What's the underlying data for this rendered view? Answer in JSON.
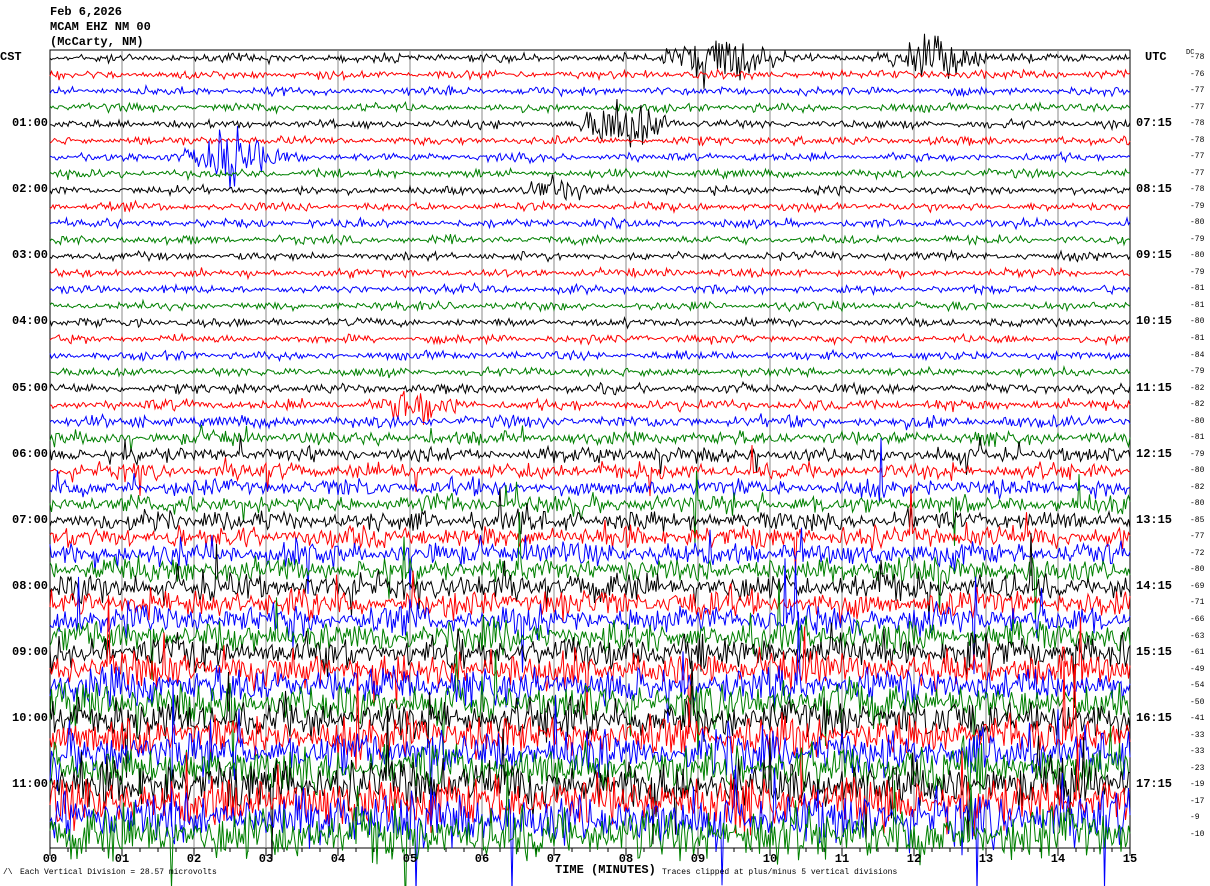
{
  "header": {
    "date": "Feb 6,2026",
    "station": "MCAM EHZ NM 00",
    "location": "(McCarty, NM)"
  },
  "left_axis_title": "CST",
  "right_axis_title": "UTC",
  "dc_title": "DC",
  "chart_data": {
    "type": "line",
    "subtype": "helicorder",
    "xlabel": "TIME (MINUTES)",
    "xlim": [
      0,
      15
    ],
    "x_ticks": [
      "00",
      "01",
      "02",
      "03",
      "04",
      "05",
      "06",
      "07",
      "08",
      "09",
      "10",
      "11",
      "12",
      "13",
      "14",
      "15"
    ],
    "minutes_per_line": 15,
    "lines_count": 48,
    "trace_colors": [
      "#000000",
      "#ff0000",
      "#0000ff",
      "#008000"
    ],
    "cst_labels": [
      "01:00",
      "02:00",
      "03:00",
      "04:00",
      "05:00",
      "06:00",
      "07:00",
      "08:00",
      "09:00",
      "10:00",
      "11:00"
    ],
    "utc_labels": [
      "07:15",
      "08:15",
      "09:15",
      "10:15",
      "11:15",
      "12:15",
      "13:15",
      "14:15",
      "15:15",
      "16:15",
      "17:15"
    ],
    "dc_offsets": [
      -78,
      -76,
      -77,
      -77,
      -78,
      -78,
      -77,
      -77,
      -78,
      -79,
      -80,
      -79,
      -80,
      -79,
      -81,
      -81,
      -80,
      -81,
      -84,
      -79,
      -82,
      -82,
      -80,
      -81,
      -79,
      -80,
      -82,
      -80,
      -85,
      -77,
      -72,
      -80,
      -69,
      -71,
      -66,
      -63,
      -61,
      -49,
      -54,
      -50,
      -41,
      -33,
      -33,
      -23,
      -19,
      -17,
      -9,
      -10
    ],
    "grid": true
  },
  "footer": {
    "scale_note": "Each Vertical Division = 28.57 microvolts",
    "clip_note": "Traces clipped at plus/minus 5 vertical divisions",
    "corner_mark": "/\\"
  }
}
